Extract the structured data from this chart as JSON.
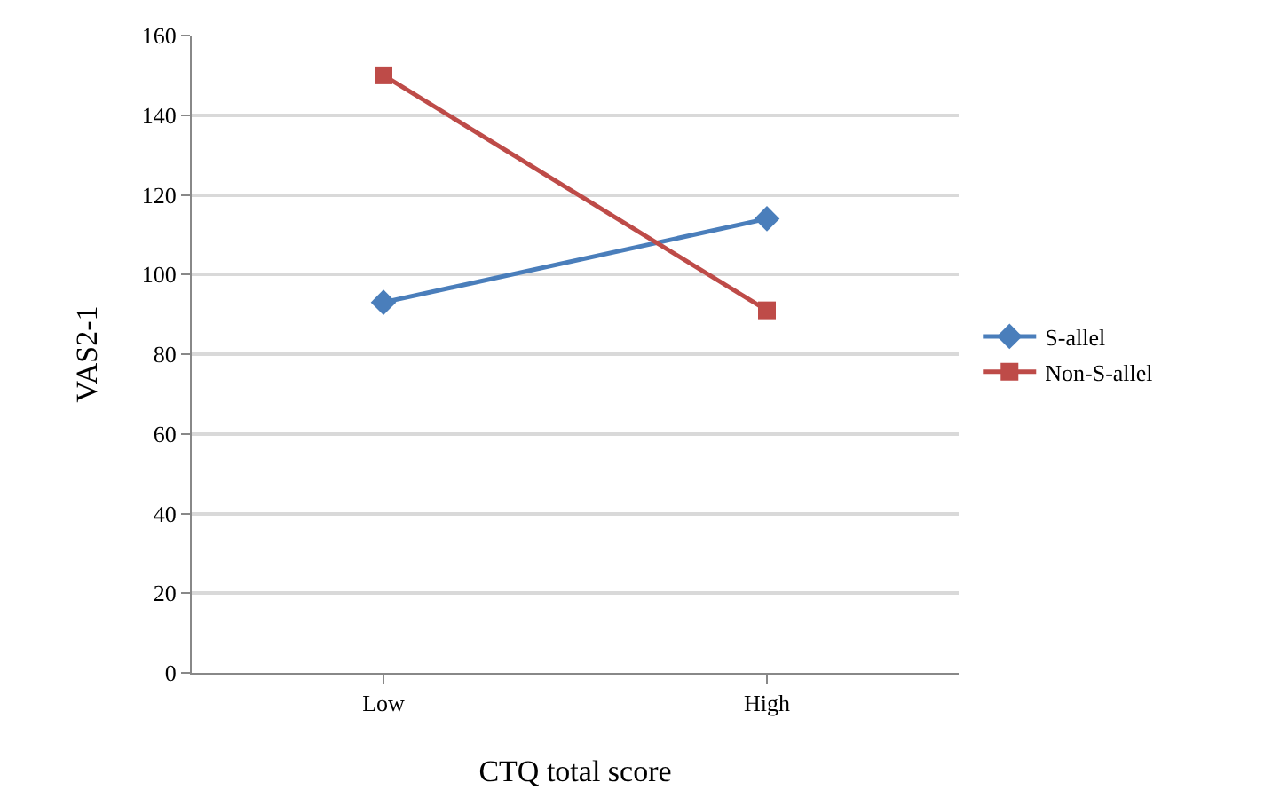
{
  "chart_data": {
    "type": "line",
    "xlabel": "CTQ total score",
    "ylabel": "VAS2-1",
    "categories": [
      "Low",
      "High"
    ],
    "series": [
      {
        "name": "S-allel",
        "color": "#4a7ebb",
        "values": [
          93,
          114
        ],
        "marker": "diamond"
      },
      {
        "name": "Non-S-allel",
        "color": "#be4b48",
        "values": [
          150,
          91
        ],
        "marker": "square"
      }
    ],
    "ylim": [
      0,
      160
    ],
    "yticks": [
      0,
      20,
      40,
      60,
      80,
      100,
      120,
      140,
      160
    ],
    "grid": "y",
    "legend": "right",
    "line_style": "solid"
  }
}
